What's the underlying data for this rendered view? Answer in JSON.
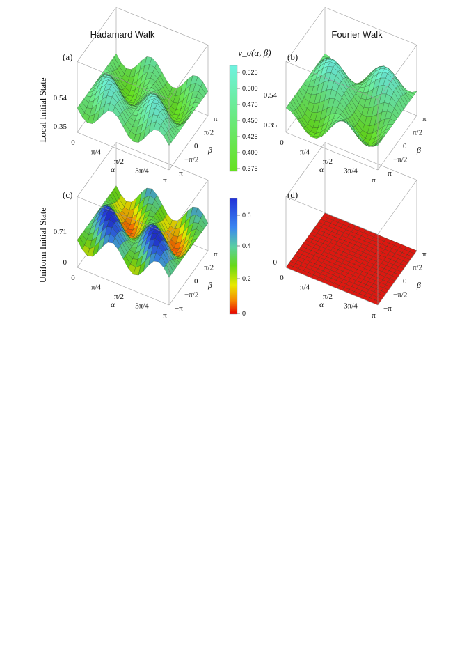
{
  "column_titles": [
    "Hadamard Walk",
    "Fourier Walk"
  ],
  "row_titles": [
    "Local Initial State",
    "Uniform Initial State"
  ],
  "colorbar_label": "v_σ(α, β)",
  "colors": {
    "bar1_low": "#66e01f",
    "bar1_high": "#6ff2e0",
    "bar2_stops": [
      "#e80000",
      "#f58a00",
      "#e8e800",
      "#66d81a",
      "#5ad0a0",
      "#3a86f0",
      "#2233d8"
    ],
    "red_plane": "#ee1a12"
  },
  "colorbar1_ticks": [
    "0.525",
    "0.500",
    "0.475",
    "0.450",
    "0.425",
    "0.400",
    "0.375"
  ],
  "colorbar2_ticks": [
    "0.6",
    "0.4",
    "0.2",
    "0"
  ],
  "alpha_ticks": [
    "0",
    "π/4",
    "π/2",
    "3π/4",
    "π"
  ],
  "beta_ticks": [
    "π",
    "π/2",
    "0",
    "−π/2",
    "−π"
  ],
  "alpha_label": "α",
  "beta_label": "β",
  "chart_data": [
    {
      "panel": "(a)",
      "type": "surface",
      "title": "",
      "xlabel": "α",
      "ylabel": "β",
      "x_range": [
        0,
        3.1416
      ],
      "y_range": [
        -3.1416,
        3.1416
      ],
      "z_range": [
        0.35,
        0.54
      ],
      "z_ticks": [
        "0.54",
        "0.35"
      ],
      "colorscale": "bar1",
      "surface": "hadamard_local"
    },
    {
      "panel": "(b)",
      "type": "surface",
      "title": "",
      "xlabel": "α",
      "ylabel": "β",
      "x_range": [
        0,
        3.1416
      ],
      "y_range": [
        -3.1416,
        3.1416
      ],
      "z_range": [
        0.35,
        0.54
      ],
      "z_ticks": [
        "0.54",
        "0.35"
      ],
      "colorscale": "bar1",
      "surface": "fourier_local"
    },
    {
      "panel": "(c)",
      "type": "surface",
      "title": "",
      "xlabel": "α",
      "ylabel": "β",
      "x_range": [
        0,
        3.1416
      ],
      "y_range": [
        -3.1416,
        3.1416
      ],
      "z_range": [
        0,
        0.71
      ],
      "z_ticks": [
        "0.71",
        "0"
      ],
      "colorscale": "bar2",
      "surface": "hadamard_uniform"
    },
    {
      "panel": "(d)",
      "type": "surface",
      "title": "",
      "xlabel": "α",
      "ylabel": "β",
      "x_range": [
        0,
        3.1416
      ],
      "y_range": [
        -3.1416,
        3.1416
      ],
      "z_range": [
        0,
        0.71
      ],
      "z_ticks": [
        "0"
      ],
      "colorscale": "red",
      "surface": "zero"
    }
  ]
}
